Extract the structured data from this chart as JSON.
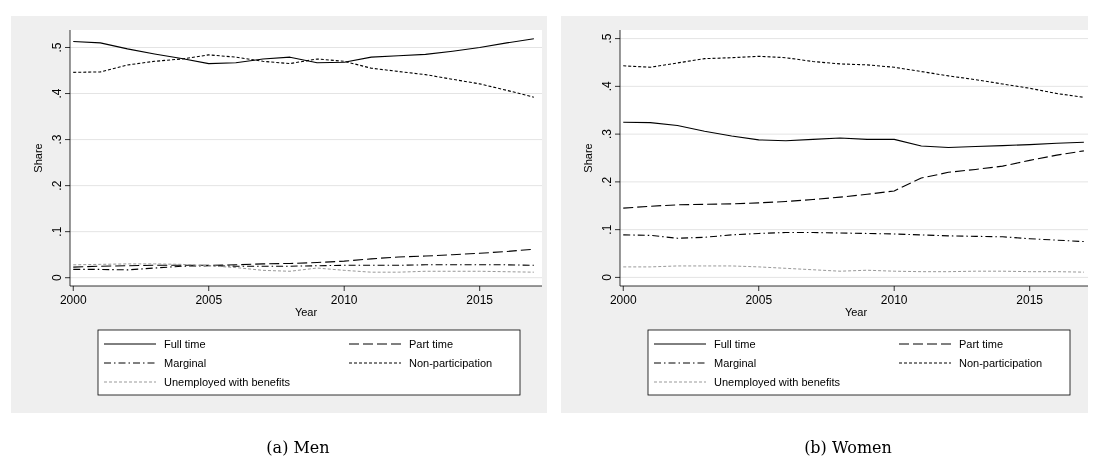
{
  "chart_data": [
    {
      "type": "line",
      "title": "(a) Men",
      "xlabel": "Year",
      "ylabel": "Share",
      "xlim": [
        1999.88,
        2017.3
      ],
      "ylim": [
        -0.018,
        0.538
      ],
      "xticks": [
        2000,
        2005,
        2010,
        2015
      ],
      "yticks": [
        0,
        {
          "value": 0.1,
          "label": ".1"
        },
        {
          "value": 0.2,
          "label": ".2"
        },
        {
          "value": 0.3,
          "label": ".3"
        },
        {
          "value": 0.4,
          "label": ".4"
        },
        {
          "value": 0.5,
          "label": ".5"
        }
      ],
      "grid": "y",
      "legend": "bottom",
      "marker": "none",
      "x": [
        2000,
        2001,
        2002,
        2003,
        2004,
        2005,
        2006,
        2007,
        2008,
        2009,
        2010,
        2011,
        2012,
        2013,
        2014,
        2015,
        2016,
        2017
      ],
      "series": [
        {
          "name": "Full time",
          "color": "#000000",
          "line_style": "solid",
          "values": [
            0.513,
            0.51,
            0.497,
            0.486,
            0.476,
            0.465,
            0.467,
            0.475,
            0.479,
            0.467,
            0.468,
            0.479,
            0.482,
            0.485,
            0.492,
            0.5,
            0.51,
            0.519
          ]
        },
        {
          "name": "Part time",
          "color": "#000000",
          "line_style": "dashed",
          "values": [
            0.023,
            0.025,
            0.026,
            0.027,
            0.027,
            0.027,
            0.028,
            0.03,
            0.031,
            0.033,
            0.036,
            0.041,
            0.045,
            0.047,
            0.05,
            0.053,
            0.057,
            0.062
          ]
        },
        {
          "name": "Marginal",
          "color": "#000000",
          "line_style": "dashdot",
          "values": [
            0.018,
            0.018,
            0.017,
            0.021,
            0.025,
            0.026,
            0.025,
            0.025,
            0.025,
            0.026,
            0.027,
            0.027,
            0.027,
            0.028,
            0.028,
            0.028,
            0.028,
            0.027
          ]
        },
        {
          "name": "Non-participation",
          "color": "#000000",
          "line_style": "dotted",
          "values": [
            0.446,
            0.447,
            0.462,
            0.47,
            0.475,
            0.484,
            0.479,
            0.47,
            0.465,
            0.475,
            0.47,
            0.455,
            0.448,
            0.441,
            0.431,
            0.421,
            0.407,
            0.392
          ]
        },
        {
          "name": "Unemployed with benefits",
          "color": "#999999",
          "line_style": "dotted",
          "values": [
            0.028,
            0.029,
            0.03,
            0.03,
            0.029,
            0.026,
            0.022,
            0.016,
            0.014,
            0.021,
            0.016,
            0.012,
            0.012,
            0.014,
            0.014,
            0.014,
            0.013,
            0.012
          ]
        }
      ]
    },
    {
      "type": "line",
      "title": "(b) Women",
      "xlabel": "Year",
      "ylabel": "Share",
      "xlim": [
        1999.88,
        2017.3
      ],
      "ylim": [
        -0.018,
        0.518
      ],
      "xticks": [
        2000,
        2005,
        2010,
        2015
      ],
      "yticks": [
        0,
        {
          "value": 0.1,
          "label": ".1"
        },
        {
          "value": 0.2,
          "label": ".2"
        },
        {
          "value": 0.3,
          "label": ".3"
        },
        {
          "value": 0.4,
          "label": ".4"
        },
        {
          "value": 0.5,
          "label": ".5"
        }
      ],
      "grid": "y",
      "legend": "bottom",
      "marker": "none",
      "x": [
        2000,
        2001,
        2002,
        2003,
        2004,
        2005,
        2006,
        2007,
        2008,
        2009,
        2010,
        2011,
        2012,
        2013,
        2014,
        2015,
        2016,
        2017
      ],
      "series": [
        {
          "name": "Full time",
          "color": "#000000",
          "line_style": "solid",
          "values": [
            0.325,
            0.324,
            0.318,
            0.306,
            0.296,
            0.288,
            0.286,
            0.289,
            0.292,
            0.289,
            0.289,
            0.275,
            0.272,
            0.274,
            0.276,
            0.278,
            0.281,
            0.283
          ]
        },
        {
          "name": "Part time",
          "color": "#000000",
          "line_style": "dashed",
          "values": [
            0.145,
            0.149,
            0.152,
            0.153,
            0.154,
            0.156,
            0.159,
            0.163,
            0.168,
            0.174,
            0.181,
            0.208,
            0.22,
            0.226,
            0.233,
            0.245,
            0.256,
            0.265
          ]
        },
        {
          "name": "Marginal",
          "color": "#000000",
          "line_style": "dashdot",
          "values": [
            0.089,
            0.088,
            0.082,
            0.084,
            0.089,
            0.092,
            0.094,
            0.094,
            0.093,
            0.092,
            0.091,
            0.089,
            0.087,
            0.086,
            0.085,
            0.081,
            0.078,
            0.075
          ]
        },
        {
          "name": "Non-participation",
          "color": "#000000",
          "line_style": "dotted",
          "values": [
            0.443,
            0.44,
            0.449,
            0.458,
            0.46,
            0.463,
            0.46,
            0.452,
            0.447,
            0.445,
            0.44,
            0.431,
            0.422,
            0.414,
            0.405,
            0.396,
            0.385,
            0.377
          ]
        },
        {
          "name": "Unemployed with benefits",
          "color": "#999999",
          "line_style": "dotted",
          "values": [
            0.022,
            0.022,
            0.024,
            0.024,
            0.024,
            0.022,
            0.019,
            0.016,
            0.013,
            0.015,
            0.013,
            0.012,
            0.012,
            0.013,
            0.013,
            0.012,
            0.012,
            0.011
          ]
        }
      ]
    }
  ]
}
